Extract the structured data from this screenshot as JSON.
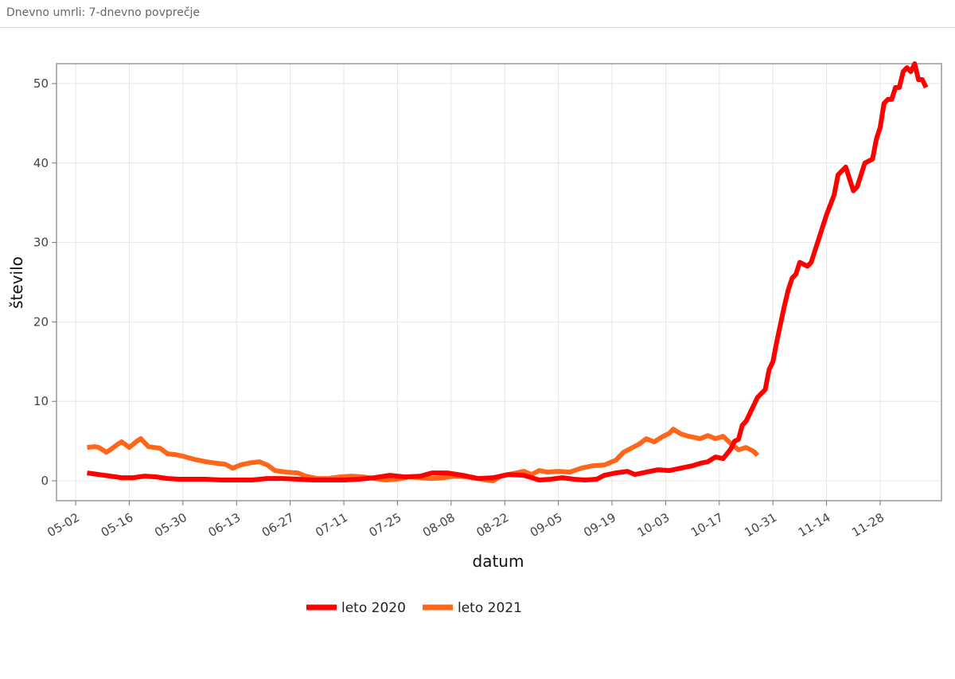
{
  "panel": {
    "title": "Dnevno umrli: 7-dnevno povprečje"
  },
  "chart_data": {
    "type": "line",
    "title": "",
    "xlabel": "datum",
    "ylabel": "število",
    "x_type": "date",
    "xlim": [
      "04-27",
      "12-14"
    ],
    "ylim": [
      -2.5,
      52.5
    ],
    "x_ticks": [
      "05-02",
      "05-16",
      "05-30",
      "06-13",
      "06-27",
      "07-11",
      "07-25",
      "08-08",
      "08-22",
      "09-05",
      "09-19",
      "10-03",
      "10-17",
      "10-31",
      "11-14",
      "11-28"
    ],
    "y_ticks": [
      0,
      10,
      20,
      30,
      40,
      50
    ],
    "grid": true,
    "legend_position": "bottom",
    "series": [
      {
        "name": "leto 2020",
        "color": "#ff0000",
        "points": [
          [
            "05-05",
            1.0
          ],
          [
            "05-08",
            0.8
          ],
          [
            "05-11",
            0.6
          ],
          [
            "05-14",
            0.4
          ],
          [
            "05-17",
            0.4
          ],
          [
            "05-20",
            0.6
          ],
          [
            "05-23",
            0.5
          ],
          [
            "05-26",
            0.3
          ],
          [
            "05-29",
            0.2
          ],
          [
            "06-01",
            0.2
          ],
          [
            "06-05",
            0.2
          ],
          [
            "06-09",
            0.1
          ],
          [
            "06-13",
            0.1
          ],
          [
            "06-17",
            0.1
          ],
          [
            "06-21",
            0.3
          ],
          [
            "06-25",
            0.3
          ],
          [
            "06-29",
            0.2
          ],
          [
            "07-03",
            0.1
          ],
          [
            "07-07",
            0.1
          ],
          [
            "07-11",
            0.1
          ],
          [
            "07-15",
            0.2
          ],
          [
            "07-19",
            0.4
          ],
          [
            "07-23",
            0.7
          ],
          [
            "07-27",
            0.5
          ],
          [
            "07-31",
            0.6
          ],
          [
            "08-03",
            1.0
          ],
          [
            "08-07",
            1.0
          ],
          [
            "08-11",
            0.7
          ],
          [
            "08-15",
            0.3
          ],
          [
            "08-19",
            0.4
          ],
          [
            "08-23",
            0.8
          ],
          [
            "08-27",
            0.7
          ],
          [
            "08-31",
            0.1
          ],
          [
            "09-03",
            0.2
          ],
          [
            "09-06",
            0.4
          ],
          [
            "09-09",
            0.2
          ],
          [
            "09-12",
            0.1
          ],
          [
            "09-15",
            0.2
          ],
          [
            "09-17",
            0.7
          ],
          [
            "09-20",
            1.0
          ],
          [
            "09-23",
            1.2
          ],
          [
            "09-25",
            0.8
          ],
          [
            "09-28",
            1.1
          ],
          [
            "10-01",
            1.4
          ],
          [
            "10-04",
            1.3
          ],
          [
            "10-07",
            1.6
          ],
          [
            "10-10",
            1.9
          ],
          [
            "10-12",
            2.2
          ],
          [
            "10-14",
            2.4
          ],
          [
            "10-16",
            3.0
          ],
          [
            "10-18",
            2.8
          ],
          [
            "10-20",
            4.0
          ],
          [
            "10-21",
            5.0
          ],
          [
            "10-22",
            5.2
          ],
          [
            "10-23",
            7.0
          ],
          [
            "10-24",
            7.5
          ],
          [
            "10-26",
            9.5
          ],
          [
            "10-27",
            10.5
          ],
          [
            "10-29",
            11.5
          ],
          [
            "10-30",
            14.0
          ],
          [
            "10-31",
            15.0
          ],
          [
            "11-01",
            17.5
          ],
          [
            "11-03",
            22.0
          ],
          [
            "11-04",
            24.0
          ],
          [
            "11-05",
            25.5
          ],
          [
            "11-06",
            26.0
          ],
          [
            "11-07",
            27.5
          ],
          [
            "11-09",
            27.0
          ],
          [
            "11-10",
            27.5
          ],
          [
            "11-12",
            30.5
          ],
          [
            "11-13",
            32.0
          ],
          [
            "11-14",
            33.5
          ],
          [
            "11-16",
            36.0
          ],
          [
            "11-17",
            38.5
          ],
          [
            "11-19",
            39.5
          ],
          [
            "11-21",
            36.5
          ],
          [
            "11-22",
            37.0
          ],
          [
            "11-24",
            40.0
          ],
          [
            "11-26",
            40.5
          ],
          [
            "11-27",
            43.0
          ],
          [
            "11-28",
            44.5
          ],
          [
            "11-29",
            47.5
          ],
          [
            "11-30",
            48.0
          ],
          [
            "12-01",
            48.0
          ],
          [
            "12-02",
            49.5
          ],
          [
            "12-03",
            49.5
          ],
          [
            "12-04",
            51.5
          ],
          [
            "12-05",
            52.0
          ],
          [
            "12-06",
            51.5
          ],
          [
            "12-07",
            52.5
          ],
          [
            "12-08",
            50.5
          ],
          [
            "12-09",
            50.5
          ],
          [
            "12-10",
            49.5
          ]
        ]
      },
      {
        "name": "leto 2021",
        "color": "#ff6619",
        "points": [
          [
            "05-05",
            4.2
          ],
          [
            "05-07",
            4.3
          ],
          [
            "05-08",
            4.2
          ],
          [
            "05-10",
            3.6
          ],
          [
            "05-11",
            3.9
          ],
          [
            "05-13",
            4.6
          ],
          [
            "05-14",
            4.9
          ],
          [
            "05-16",
            4.2
          ],
          [
            "05-18",
            5.0
          ],
          [
            "05-19",
            5.3
          ],
          [
            "05-21",
            4.3
          ],
          [
            "05-24",
            4.1
          ],
          [
            "05-26",
            3.4
          ],
          [
            "05-28",
            3.3
          ],
          [
            "05-30",
            3.1
          ],
          [
            "06-02",
            2.7
          ],
          [
            "06-05",
            2.4
          ],
          [
            "06-08",
            2.2
          ],
          [
            "06-10",
            2.1
          ],
          [
            "06-12",
            1.6
          ],
          [
            "06-14",
            2.0
          ],
          [
            "06-17",
            2.3
          ],
          [
            "06-19",
            2.4
          ],
          [
            "06-21",
            2.0
          ],
          [
            "06-23",
            1.3
          ],
          [
            "06-26",
            1.1
          ],
          [
            "06-29",
            1.0
          ],
          [
            "07-01",
            0.6
          ],
          [
            "07-04",
            0.3
          ],
          [
            "07-07",
            0.3
          ],
          [
            "07-10",
            0.5
          ],
          [
            "07-13",
            0.6
          ],
          [
            "07-16",
            0.5
          ],
          [
            "07-19",
            0.3
          ],
          [
            "07-22",
            0.1
          ],
          [
            "07-25",
            0.2
          ],
          [
            "07-28",
            0.5
          ],
          [
            "07-31",
            0.4
          ],
          [
            "08-03",
            0.3
          ],
          [
            "08-06",
            0.4
          ],
          [
            "08-09",
            0.6
          ],
          [
            "08-12",
            0.5
          ],
          [
            "08-15",
            0.3
          ],
          [
            "08-17",
            0.1
          ],
          [
            "08-19",
            0.0
          ],
          [
            "08-21",
            0.6
          ],
          [
            "08-23",
            0.8
          ],
          [
            "08-25",
            1.0
          ],
          [
            "08-27",
            1.2
          ],
          [
            "08-29",
            0.8
          ],
          [
            "08-31",
            1.3
          ],
          [
            "09-02",
            1.1
          ],
          [
            "09-05",
            1.2
          ],
          [
            "09-08",
            1.1
          ],
          [
            "09-11",
            1.6
          ],
          [
            "09-14",
            1.9
          ],
          [
            "09-17",
            2.0
          ],
          [
            "09-20",
            2.6
          ],
          [
            "09-22",
            3.6
          ],
          [
            "09-24",
            4.1
          ],
          [
            "09-26",
            4.6
          ],
          [
            "09-28",
            5.3
          ],
          [
            "09-30",
            4.9
          ],
          [
            "10-02",
            5.5
          ],
          [
            "10-04",
            6.0
          ],
          [
            "10-05",
            6.5
          ],
          [
            "10-07",
            5.9
          ],
          [
            "10-09",
            5.6
          ],
          [
            "10-12",
            5.3
          ],
          [
            "10-14",
            5.7
          ],
          [
            "10-16",
            5.3
          ],
          [
            "10-18",
            5.6
          ],
          [
            "10-20",
            4.7
          ],
          [
            "10-22",
            3.9
          ],
          [
            "10-24",
            4.2
          ],
          [
            "10-26",
            3.7
          ],
          [
            "10-27",
            3.2
          ]
        ]
      }
    ]
  }
}
